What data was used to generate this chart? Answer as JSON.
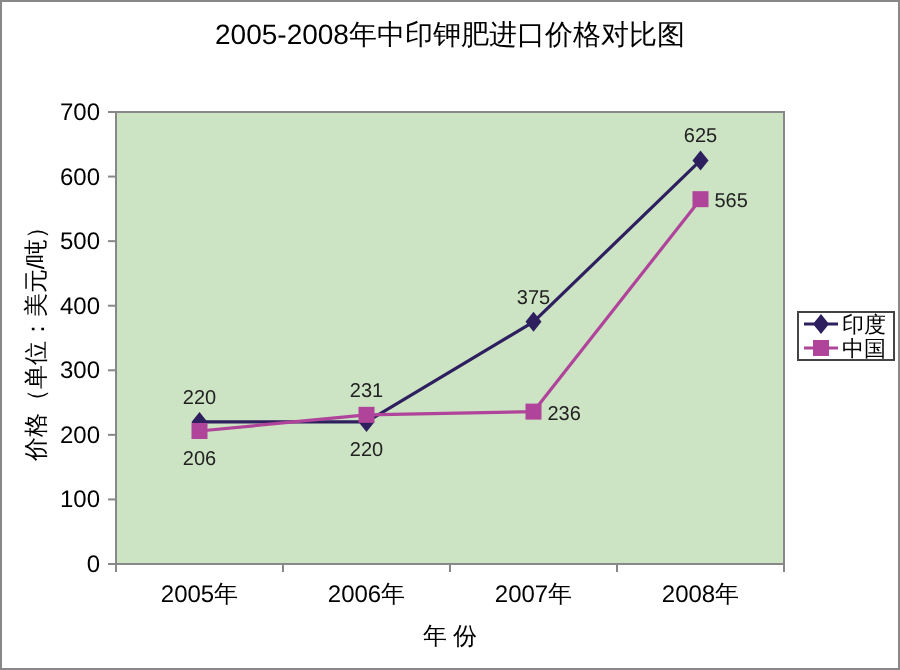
{
  "chart_data": {
    "type": "line",
    "title": "2005-2008年中印钾肥进口价格对比图",
    "xlabel": "年 份",
    "ylabel": "价格（单位：美元/吨）",
    "categories": [
      "2005年",
      "2006年",
      "2007年",
      "2008年"
    ],
    "series": [
      {
        "name": "印度",
        "color": "#2e1f5e",
        "marker": "diamond",
        "values": [
          220,
          220,
          375,
          625
        ]
      },
      {
        "name": "中国",
        "color": "#b0449a",
        "marker": "square",
        "values": [
          206,
          231,
          236,
          565
        ]
      }
    ],
    "ylim": [
      0,
      700
    ],
    "yticks": [
      0,
      100,
      200,
      300,
      400,
      500,
      600,
      700
    ],
    "grid": false,
    "legend": "right",
    "data_labels": true,
    "line_style": "solid"
  }
}
